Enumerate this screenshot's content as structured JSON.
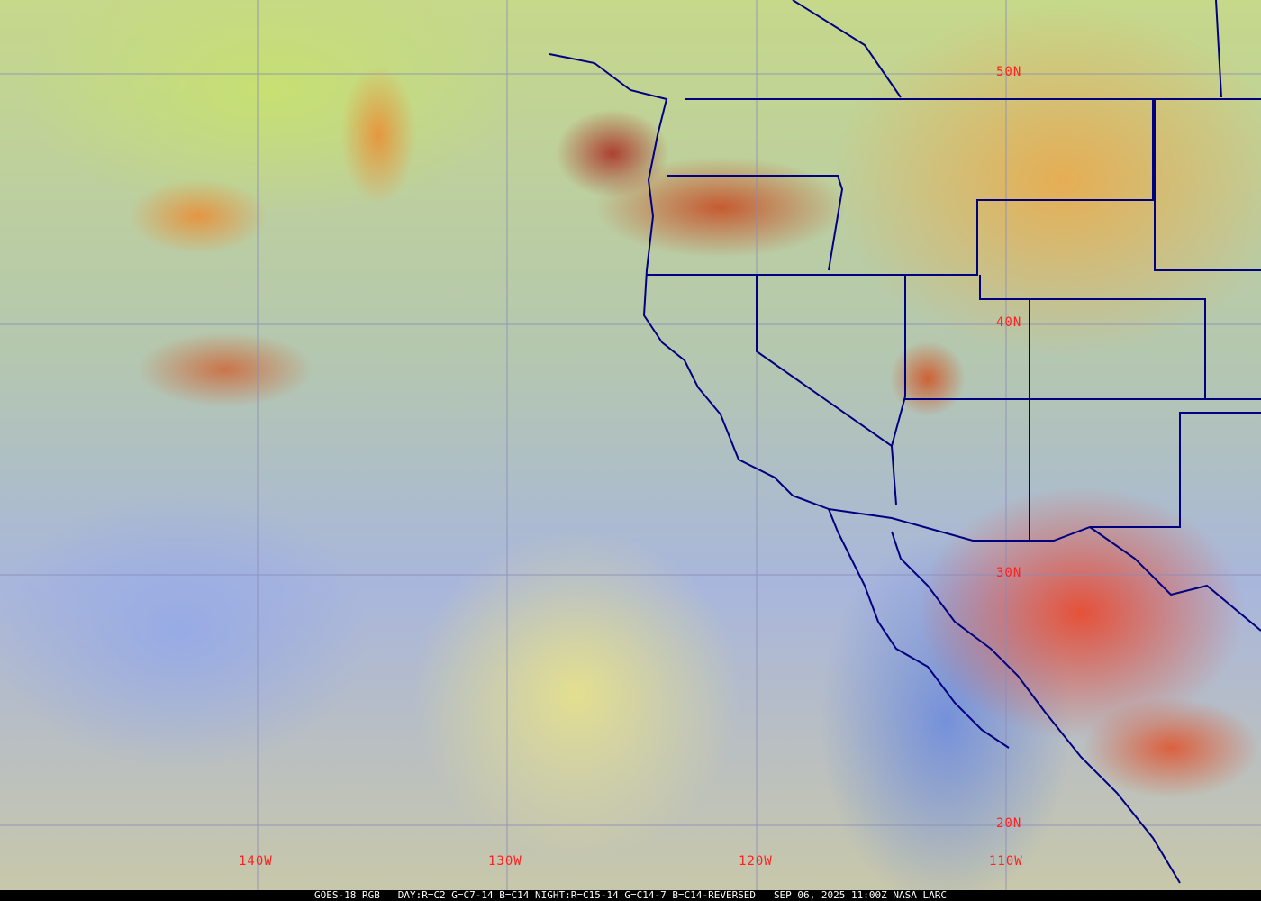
{
  "map": {
    "lat_labels": [
      "50N",
      "40N",
      "30N",
      "20N"
    ],
    "lon_labels": [
      "140W",
      "130W",
      "120W",
      "110W"
    ],
    "colors": {
      "grid": "#8a8ab8",
      "borders": "#000080",
      "labels": "#ff2020"
    }
  },
  "caption": {
    "product": "GOES-18 RGB",
    "recipe": "DAY:R=C2 G=C7-14 B=C14 NIGHT:R=C15-14 G=C14-7 B=C14-REVERSED",
    "timestamp": "SEP 06, 2025 11:00Z",
    "source": "NASA LARC"
  }
}
